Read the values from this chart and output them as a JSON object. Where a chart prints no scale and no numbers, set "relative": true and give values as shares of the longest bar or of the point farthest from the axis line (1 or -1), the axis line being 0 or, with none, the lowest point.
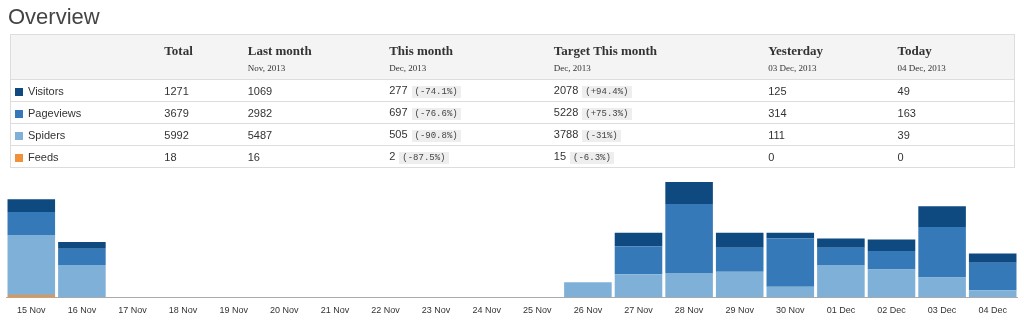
{
  "chart_data": [
    {
      "type": "other",
      "title": "Overview",
      "categories": [
        null,
        "Total",
        "Last month\nNov, 2013",
        "This month\nDec, 2013",
        "Target This month\nDec, 2013",
        "Yesterday\n03 Dec, 2013",
        "Today\n04 Dec, 2013"
      ],
      "cell_labels": [
        [
          "1271",
          "1069",
          "277 (-74.1%)",
          "2078 (+94.4%)",
          "125",
          "49"
        ],
        [
          "3679",
          "2982",
          "697 (-76.6%)",
          "5228 (+75.3%)",
          "314",
          "163"
        ],
        [
          "5992",
          "5487",
          "505 (-90.8%)",
          "3788 (-31%)",
          "111",
          "39"
        ],
        [
          "18",
          "16",
          "2 (-87.5%)",
          "15 (-6.3%)",
          "0",
          "0"
        ]
      ]
    },
    {
      "type": "bar",
      "stacked": true,
      "relative": true,
      "grid": false,
      "legend": false,
      "categories": [
        "15 Nov",
        "16 Nov",
        "17 Nov",
        "18 Nov",
        "19 Nov",
        "20 Nov",
        "21 Nov",
        "22 Nov",
        "23 Nov",
        "24 Nov",
        "25 Nov",
        "26 Nov",
        "27 Nov",
        "28 Nov",
        "29 Nov",
        "30 Nov",
        "01 Dec",
        "02 Dec",
        "03 Dec",
        "04 Dec"
      ],
      "series": [
        {
          "name": "Feeds",
          "color": "#f0923a",
          "values": [
            0.02,
            0,
            0,
            0,
            0,
            0,
            0,
            0,
            0,
            0,
            0,
            0,
            0,
            0,
            0,
            0,
            0,
            0,
            0,
            0
          ]
        },
        {
          "name": "Spiders",
          "color": "#7fb0d8",
          "values": [
            0.52,
            0.28,
            0,
            0,
            0,
            0,
            0,
            0,
            0,
            0,
            0,
            0.13,
            0.2,
            0.21,
            0.22,
            0.09,
            0.28,
            0.24,
            0.17,
            0.06
          ]
        },
        {
          "name": "Pageviews",
          "color": "#3579b8",
          "values": [
            0.2,
            0.14,
            0,
            0,
            0,
            0,
            0,
            0,
            0,
            0,
            0,
            0,
            0.24,
            0.6,
            0.21,
            0.42,
            0.15,
            0.16,
            0.44,
            0.24
          ]
        },
        {
          "name": "Visitors",
          "color": "#0e4a80",
          "values": [
            0.11,
            0.06,
            0,
            0,
            0,
            0,
            0,
            0,
            0,
            0,
            0,
            0,
            0.12,
            0.19,
            0.13,
            0.05,
            0.08,
            0.1,
            0.18,
            0.08
          ]
        }
      ]
    }
  ]
}
